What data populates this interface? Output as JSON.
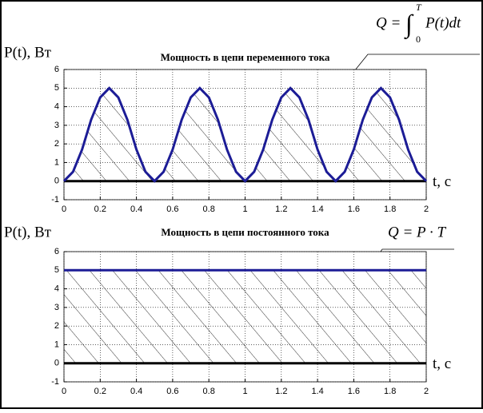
{
  "chart_data": [
    {
      "type": "line",
      "title": "Мощность в цепи переменного тока",
      "ylabel": "P(t), Вт",
      "xlabel": "t, c",
      "formula": {
        "lhs": "Q =",
        "integral": "∫",
        "lower": "0",
        "upper": "T",
        "integrand": "P(t)dt"
      },
      "x": [
        0,
        0.05,
        0.1,
        0.15,
        0.2,
        0.25,
        0.3,
        0.35,
        0.4,
        0.45,
        0.5,
        0.55,
        0.6,
        0.65,
        0.7,
        0.75,
        0.8,
        0.85,
        0.9,
        0.95,
        1,
        1.05,
        1.1,
        1.15,
        1.2,
        1.25,
        1.3,
        1.35,
        1.4,
        1.45,
        1.5,
        1.55,
        1.6,
        1.65,
        1.7,
        1.75,
        1.8,
        1.85,
        1.9,
        1.95,
        2
      ],
      "series": [
        {
          "color": "#1c1c96",
          "values": [
            0,
            0.5,
            1.7,
            3.3,
            4.5,
            5,
            4.5,
            3.3,
            1.7,
            0.5,
            0,
            0.5,
            1.7,
            3.3,
            4.5,
            5,
            4.5,
            3.3,
            1.7,
            0.5,
            0,
            0.5,
            1.7,
            3.3,
            4.5,
            5,
            4.5,
            3.3,
            1.7,
            0.5,
            0,
            0.5,
            1.7,
            3.3,
            4.5,
            5,
            4.5,
            3.3,
            1.7,
            0.5,
            0
          ]
        }
      ],
      "xlim": [
        0,
        2
      ],
      "xticks": [
        0,
        0.2,
        0.4,
        0.6,
        0.8,
        1,
        1.2,
        1.4,
        1.6,
        1.8,
        2
      ],
      "ylim": [
        -1,
        6
      ],
      "yticks": [
        -1,
        0,
        1,
        2,
        3,
        4,
        5,
        6
      ],
      "grid": true,
      "hatch": true
    },
    {
      "type": "line",
      "title": "Мощность в цепи постоянного тока",
      "ylabel": "P(t), Вт",
      "xlabel": "t, c",
      "formula": "Q = P · T",
      "x": [
        0,
        2
      ],
      "series": [
        {
          "color": "#1c1c96",
          "values": [
            5,
            5
          ]
        }
      ],
      "xlim": [
        0,
        2
      ],
      "xticks": [
        0,
        0.2,
        0.4,
        0.6,
        0.8,
        1,
        1.2,
        1.4,
        1.6,
        1.8,
        2
      ],
      "ylim": [
        -1,
        6
      ],
      "yticks": [
        -1,
        0,
        1,
        2,
        3,
        4,
        5,
        6
      ],
      "grid": true,
      "hatch": true
    }
  ]
}
